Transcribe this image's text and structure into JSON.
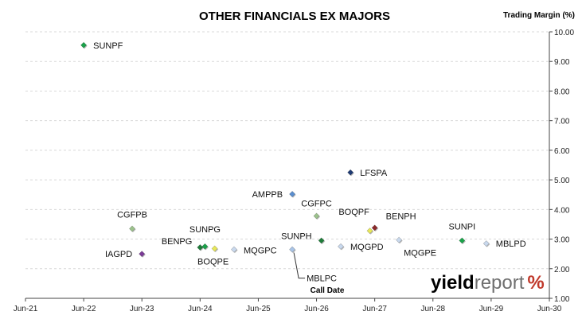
{
  "chart_data": {
    "type": "scatter",
    "title": "OTHER FINANCIALS EX MAJORS",
    "ylabel": "Trading Margin (%)",
    "xlabel": "Call Date",
    "ylim": [
      1.0,
      10.0
    ],
    "yticks": [
      "1.00",
      "2.00",
      "3.00",
      "4.00",
      "5.00",
      "6.00",
      "7.00",
      "8.00",
      "9.00",
      "10.00"
    ],
    "xlim": [
      "2021-06",
      "2030-06"
    ],
    "xticks": [
      "Jun-21",
      "Jun-22",
      "Jun-23",
      "Jun-24",
      "Jun-25",
      "Jun-26",
      "Jun-27",
      "Jun-28",
      "Jun-29",
      "Jun-30"
    ],
    "grid": "horizontal",
    "points": [
      {
        "label": "SUNPF",
        "x": "2022-06",
        "y": 9.55,
        "color": "#1aa34a"
      },
      {
        "label": "CGFPB",
        "x": "2023-04",
        "y": 3.35,
        "color": "#9cc28c"
      },
      {
        "label": "IAGPD",
        "x": "2023-06",
        "y": 2.5,
        "color": "#7b3b97"
      },
      {
        "label": "BENPG",
        "x": "2024-06",
        "y": 2.72,
        "color": "#1f7d3a"
      },
      {
        "label": "SUNPG",
        "x": "2024-07",
        "y": 2.75,
        "color": "#1aa34a"
      },
      {
        "label": "BOQPE",
        "x": "2024-09",
        "y": 2.68,
        "color": "#e8e85a"
      },
      {
        "label": "MQGPC",
        "x": "2025-01",
        "y": 2.65,
        "color": "#c9d9ee"
      },
      {
        "label": "AMPPB",
        "x": "2026-01",
        "y": 4.52,
        "color": "#5b8fd0"
      },
      {
        "label": "MBLPC",
        "x": "2026-01",
        "y": 2.65,
        "color": "#a9c4e6"
      },
      {
        "label": "CGFPC",
        "x": "2026-06",
        "y": 3.78,
        "color": "#9cc28c"
      },
      {
        "label": "SUNPH",
        "x": "2026-07",
        "y": 2.95,
        "color": "#1f7d3a"
      },
      {
        "label": "MQGPD",
        "x": "2026-11",
        "y": 2.75,
        "color": "#c9d9ee"
      },
      {
        "label": "LFSPA",
        "x": "2027-01",
        "y": 5.25,
        "color": "#1f3b73"
      },
      {
        "label": "BOQPF",
        "x": "2027-05",
        "y": 3.28,
        "color": "#e8e85a"
      },
      {
        "label": "BENPH",
        "x": "2027-06",
        "y": 3.38,
        "color": "#8b2a2a"
      },
      {
        "label": "MQGPE",
        "x": "2027-11",
        "y": 2.97,
        "color": "#c9d9ee"
      },
      {
        "label": "SUNPI",
        "x": "2028-12",
        "y": 2.95,
        "color": "#1aa34a"
      },
      {
        "label": "MBLPD",
        "x": "2029-05",
        "y": 2.85,
        "color": "#c9d9ee"
      }
    ]
  },
  "logo": {
    "bold": "yield",
    "light": "report",
    "pct": "%"
  }
}
